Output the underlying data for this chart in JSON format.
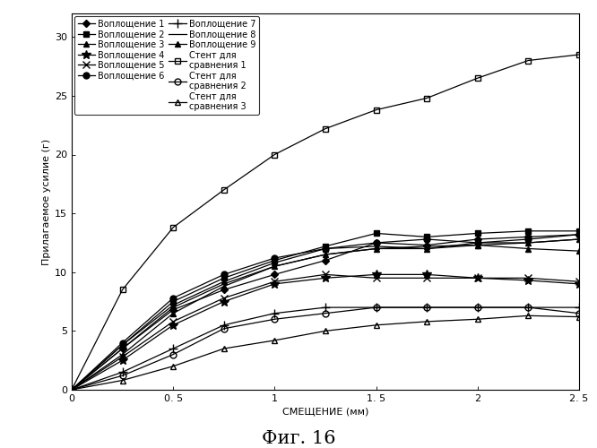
{
  "title": "Фиг. 16",
  "xlabel": "СМЕЩЕНИЕ (мм)",
  "ylabel": "Прилагаемое усилие (г)",
  "xlim": [
    0,
    2.5
  ],
  "ylim": [
    0,
    32
  ],
  "yticks": [
    0,
    5,
    10,
    15,
    20,
    25,
    30
  ],
  "xticks": [
    0,
    0.5,
    1.0,
    1.5,
    2.0,
    2.5
  ],
  "xticklabels": [
    "0",
    "0. 5",
    "1",
    "1. 5",
    "2",
    "2. 5"
  ],
  "series": [
    {
      "label": "Воплощение 1",
      "x": [
        0,
        0.25,
        0.5,
        0.75,
        1.0,
        1.25,
        1.5,
        1.75,
        2.0,
        2.25,
        2.5
      ],
      "y": [
        0,
        3.5,
        6.8,
        8.5,
        9.8,
        11.0,
        12.5,
        12.3,
        12.8,
        13.0,
        13.2
      ],
      "color": "black",
      "marker": "D",
      "markersize": 4,
      "linestyle": "-",
      "fillstyle": "full"
    },
    {
      "label": "Воплощение 2",
      "x": [
        0,
        0.25,
        0.5,
        0.75,
        1.0,
        1.25,
        1.5,
        1.75,
        2.0,
        2.25,
        2.5
      ],
      "y": [
        0,
        3.8,
        7.5,
        9.5,
        11.0,
        12.2,
        13.3,
        13.0,
        13.3,
        13.5,
        13.5
      ],
      "color": "black",
      "marker": "s",
      "markersize": 4,
      "linestyle": "-",
      "fillstyle": "full"
    },
    {
      "label": "Воплощение 3",
      "x": [
        0,
        0.25,
        0.5,
        0.75,
        1.0,
        1.25,
        1.5,
        1.75,
        2.0,
        2.25,
        2.5
      ],
      "y": [
        0,
        3.0,
        6.5,
        8.8,
        10.5,
        11.5,
        12.0,
        12.2,
        12.3,
        12.0,
        11.8
      ],
      "color": "black",
      "marker": "^",
      "markersize": 5,
      "linestyle": "-",
      "fillstyle": "full"
    },
    {
      "label": "Воплощение 4",
      "x": [
        0,
        0.25,
        0.5,
        0.75,
        1.0,
        1.25,
        1.5,
        1.75,
        2.0,
        2.25,
        2.5
      ],
      "y": [
        0,
        2.5,
        5.5,
        7.5,
        9.0,
        9.5,
        9.8,
        9.8,
        9.5,
        9.3,
        9.0
      ],
      "color": "black",
      "marker": "*",
      "markersize": 7,
      "linestyle": "-",
      "fillstyle": "full"
    },
    {
      "label": "Воплощение 5",
      "x": [
        0,
        0.25,
        0.5,
        0.75,
        1.0,
        1.25,
        1.5,
        1.75,
        2.0,
        2.25,
        2.5
      ],
      "y": [
        0,
        2.8,
        5.8,
        7.8,
        9.2,
        9.8,
        9.5,
        9.5,
        9.5,
        9.5,
        9.2
      ],
      "color": "black",
      "marker": "x",
      "markersize": 6,
      "linestyle": "-",
      "fillstyle": "full"
    },
    {
      "label": "Воплощение 6",
      "x": [
        0,
        0.25,
        0.5,
        0.75,
        1.0,
        1.25,
        1.5,
        1.75,
        2.0,
        2.25,
        2.5
      ],
      "y": [
        0,
        4.0,
        7.8,
        9.8,
        11.2,
        12.0,
        12.5,
        12.8,
        12.5,
        12.8,
        13.2
      ],
      "color": "black",
      "marker": "o",
      "markersize": 5,
      "linestyle": "-",
      "fillstyle": "full"
    },
    {
      "label": "Воплощение 7",
      "x": [
        0,
        0.25,
        0.5,
        0.75,
        1.0,
        1.25,
        1.5,
        1.75,
        2.0,
        2.25,
        2.5
      ],
      "y": [
        0,
        1.5,
        3.5,
        5.5,
        6.5,
        7.0,
        7.0,
        7.0,
        7.0,
        7.0,
        7.0
      ],
      "color": "black",
      "marker": "+",
      "markersize": 7,
      "linestyle": "-",
      "fillstyle": "full"
    },
    {
      "label": "Воплощение 8",
      "x": [
        0,
        0.25,
        0.5,
        0.75,
        1.0,
        1.25,
        1.5,
        1.75,
        2.0,
        2.25,
        2.5
      ],
      "y": [
        0,
        3.5,
        7.0,
        9.0,
        10.5,
        11.5,
        12.0,
        12.0,
        12.5,
        12.5,
        12.8
      ],
      "color": "black",
      "marker": "None",
      "markersize": 5,
      "linestyle": "-",
      "fillstyle": "full"
    },
    {
      "label": "Воплощение 9",
      "x": [
        0,
        0.25,
        0.5,
        0.75,
        1.0,
        1.25,
        1.5,
        1.75,
        2.0,
        2.25,
        2.5
      ],
      "y": [
        0,
        3.8,
        7.2,
        9.2,
        10.8,
        12.0,
        12.2,
        12.0,
        12.3,
        12.5,
        12.8
      ],
      "color": "black",
      "marker": "^",
      "markersize": 5,
      "linestyle": "-",
      "fillstyle": "full"
    },
    {
      "label": "Стент для\nсравнения 1",
      "x": [
        0,
        0.25,
        0.5,
        0.75,
        1.0,
        1.25,
        1.5,
        1.75,
        2.0,
        2.25,
        2.5
      ],
      "y": [
        0,
        8.5,
        13.8,
        17.0,
        20.0,
        22.2,
        23.8,
        24.8,
        26.5,
        28.0,
        28.5
      ],
      "color": "black",
      "marker": "s",
      "markersize": 5,
      "linestyle": "-",
      "fillstyle": "none"
    },
    {
      "label": "Стент для\nсравнения 2",
      "x": [
        0,
        0.25,
        0.5,
        0.75,
        1.0,
        1.25,
        1.5,
        1.75,
        2.0,
        2.25,
        2.5
      ],
      "y": [
        0,
        1.2,
        3.0,
        5.2,
        6.0,
        6.5,
        7.0,
        7.0,
        7.0,
        7.0,
        6.5
      ],
      "color": "black",
      "marker": "o",
      "markersize": 5,
      "linestyle": "-",
      "fillstyle": "none"
    },
    {
      "label": "Стент для\nсравнения 3",
      "x": [
        0,
        0.25,
        0.5,
        0.75,
        1.0,
        1.25,
        1.5,
        1.75,
        2.0,
        2.25,
        2.5
      ],
      "y": [
        0,
        0.8,
        2.0,
        3.5,
        4.2,
        5.0,
        5.5,
        5.8,
        6.0,
        6.3,
        6.2
      ],
      "color": "black",
      "marker": "^",
      "markersize": 5,
      "linestyle": "-",
      "fillstyle": "none"
    }
  ],
  "legend_order": [
    0,
    1,
    2,
    3,
    4,
    5,
    6,
    7,
    8,
    9,
    10,
    11
  ],
  "background_color": "#f0f0f0"
}
